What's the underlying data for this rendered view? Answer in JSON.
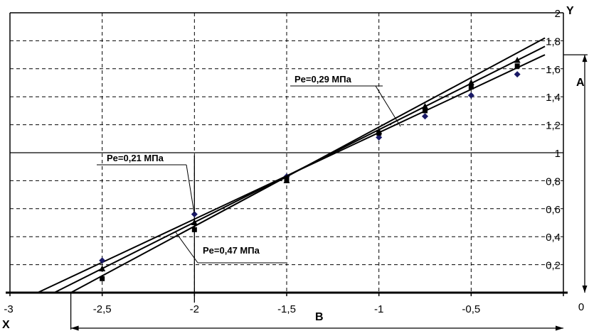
{
  "chart_data": {
    "type": "line",
    "title": "",
    "xlabel": "X",
    "ylabel": "Y",
    "xlim": [
      -3,
      0
    ],
    "ylim": [
      0,
      2
    ],
    "grid": true,
    "x_ticks": [
      -3,
      -2.5,
      -2,
      -1.5,
      -1,
      -0.5,
      0
    ],
    "x_tick_labels": [
      "-3",
      "-2,5",
      "-2",
      "-1,5",
      "-1",
      "-0,5",
      "0"
    ],
    "y_ticks": [
      0.2,
      0.4,
      0.6,
      0.8,
      1,
      1.2,
      1.4,
      1.6,
      1.8,
      2
    ],
    "y_tick_labels": [
      "0,2",
      "0,4",
      "0,6",
      "0,8",
      "1",
      "1,2",
      "1,4",
      "1,6",
      "1,8",
      "2"
    ],
    "series": [
      {
        "name": "Pe=0,21 МПа",
        "marker": "diamond",
        "color": "#1a1a66",
        "x": [
          -2.5,
          -2,
          -1.5,
          -1,
          -0.75,
          -0.5,
          -0.25
        ],
        "y": [
          0.23,
          0.56,
          0.83,
          1.11,
          1.26,
          1.41,
          1.56
        ],
        "line": [
          [
            -2.85,
            0
          ],
          [
            -0.1,
            1.7
          ]
        ]
      },
      {
        "name": "Pe=0,29 МПа",
        "marker": "triangle",
        "color": "#000000",
        "x": [
          -2.5,
          -2,
          -1.5,
          -1,
          -0.75,
          -0.5,
          -0.25
        ],
        "y": [
          0.17,
          0.5,
          0.8,
          1.15,
          1.33,
          1.5,
          1.66
        ],
        "line": [
          [
            -2.76,
            0
          ],
          [
            -0.1,
            1.76
          ]
        ]
      },
      {
        "name": "Pe=0,47 МПа",
        "marker": "square",
        "color": "#000000",
        "x": [
          -2.5,
          -2,
          -1.5,
          -1,
          -0.75,
          -0.5,
          -0.25
        ],
        "y": [
          0.1,
          0.45,
          0.81,
          1.14,
          1.3,
          1.47,
          1.62
        ],
        "line": [
          [
            -2.67,
            0
          ],
          [
            -0.1,
            1.82
          ]
        ]
      }
    ],
    "annotations": [
      {
        "text": "Pe=0,21 МПа"
      },
      {
        "text": "Pe=0,29 МПа"
      },
      {
        "text": "Pe=0,47 МПа"
      }
    ],
    "dimension_labels": {
      "a": "A",
      "b": "B"
    },
    "axis_names": {
      "x": "X",
      "y": "Y"
    }
  }
}
